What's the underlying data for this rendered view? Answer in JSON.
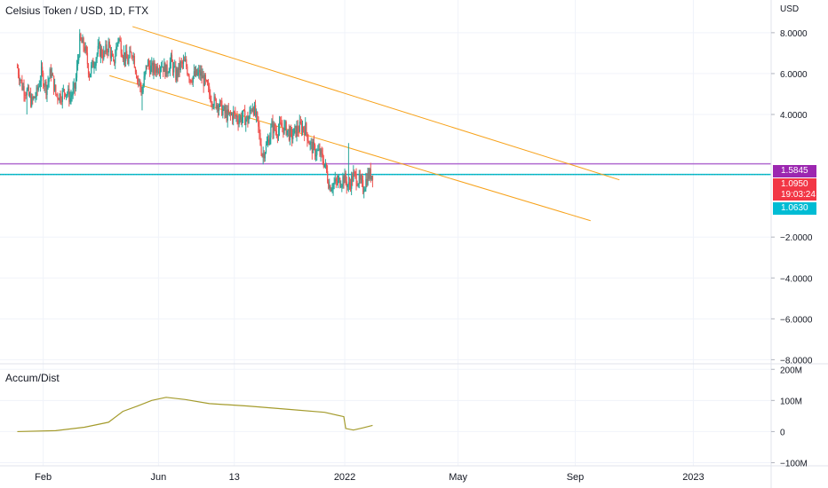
{
  "header": {
    "title": "Celsius Token / USD, 1D, FTX",
    "currency": "USD"
  },
  "indicator": {
    "name": "Accum/Dist"
  },
  "colors": {
    "up": "#26a69a",
    "down": "#ef5350",
    "channel": "#f7a21b",
    "resistance_line": "#b06ad0",
    "current_line": "#00bcd4",
    "ad_line": "#a49b2c",
    "tag_resistance": "#9c27b0",
    "tag_last": "#f23645",
    "tag_low": "#00bcd4"
  },
  "tags": {
    "resistance": "1.5845",
    "last": "1.0950",
    "countdown": "19:03:24",
    "low": "1.0630"
  },
  "chart_data": [
    {
      "type": "candlestick",
      "title": "Celsius Token / USD, 1D, FTX",
      "ylabel": "USD",
      "y_ticks": [
        "8.0000",
        "6.0000",
        "4.0000",
        "−2.0000",
        "−4.0000",
        "−6.0000",
        "−8.0000"
      ],
      "y_tick_values": [
        8,
        6,
        4,
        -2,
        -4,
        -6,
        -8
      ],
      "ylim": [
        -8.2,
        9.6
      ],
      "x_ticks": [
        "Feb",
        "Jun",
        "13",
        "2022",
        "May",
        "Sep",
        "2023"
      ],
      "x_tick_values": [
        27,
        147,
        226,
        341,
        459,
        581,
        704
      ],
      "xlim": [
        -18,
        785
      ],
      "grid": true,
      "horizontal_lines": [
        1.5845,
        1.063
      ],
      "channel_upper": [
        [
          120,
          8.3
        ],
        [
          627,
          0.8
        ]
      ],
      "channel_lower": [
        [
          96,
          5.9
        ],
        [
          597,
          -1.2
        ]
      ],
      "close_path": [
        [
          0,
          6.3
        ],
        [
          5,
          5.4
        ],
        [
          10,
          5.1
        ],
        [
          15,
          4.6
        ],
        [
          20,
          5.0
        ],
        [
          25,
          6.0
        ],
        [
          30,
          5.3
        ],
        [
          35,
          6.1
        ],
        [
          40,
          5.0
        ],
        [
          45,
          4.9
        ],
        [
          50,
          5.2
        ],
        [
          55,
          4.8
        ],
        [
          60,
          5.3
        ],
        [
          65,
          7.6
        ],
        [
          70,
          7.3
        ],
        [
          75,
          6.0
        ],
        [
          80,
          6.6
        ],
        [
          85,
          7.2
        ],
        [
          90,
          6.9
        ],
        [
          95,
          7.4
        ],
        [
          100,
          6.4
        ],
        [
          105,
          7.8
        ],
        [
          110,
          7.0
        ],
        [
          115,
          6.6
        ],
        [
          120,
          7.1
        ],
        [
          125,
          5.8
        ],
        [
          130,
          5.1
        ],
        [
          135,
          6.5
        ],
        [
          140,
          6.2
        ],
        [
          145,
          6.3
        ],
        [
          150,
          6.5
        ],
        [
          155,
          6.1
        ],
        [
          160,
          6.6
        ],
        [
          165,
          5.9
        ],
        [
          170,
          6.4
        ],
        [
          175,
          6.5
        ],
        [
          180,
          5.8
        ],
        [
          185,
          5.9
        ],
        [
          190,
          6.0
        ],
        [
          195,
          5.6
        ],
        [
          200,
          5.0
        ],
        [
          205,
          4.6
        ],
        [
          210,
          4.5
        ],
        [
          215,
          4.1
        ],
        [
          220,
          3.9
        ],
        [
          225,
          4.0
        ],
        [
          230,
          3.8
        ],
        [
          235,
          3.9
        ],
        [
          240,
          3.7
        ],
        [
          245,
          4.5
        ],
        [
          250,
          3.6
        ],
        [
          255,
          2.0
        ],
        [
          260,
          2.5
        ],
        [
          265,
          3.4
        ],
        [
          270,
          3.2
        ],
        [
          275,
          3.4
        ],
        [
          280,
          3.3
        ],
        [
          285,
          2.9
        ],
        [
          290,
          3.2
        ],
        [
          295,
          3.4
        ],
        [
          300,
          3.3
        ],
        [
          305,
          2.5
        ],
        [
          310,
          2.2
        ],
        [
          315,
          2.1
        ],
        [
          320,
          1.6
        ],
        [
          325,
          0.5
        ],
        [
          330,
          0.6
        ],
        [
          335,
          0.7
        ],
        [
          340,
          0.9
        ],
        [
          345,
          0.5
        ],
        [
          350,
          1.0
        ],
        [
          355,
          0.8
        ],
        [
          360,
          0.4
        ],
        [
          365,
          1.0
        ],
        [
          370,
          1.1
        ]
      ],
      "volatility_spike": {
        "x": 345,
        "high": 2.6
      },
      "period_lows": [
        [
          10,
          4.0
        ],
        [
          55,
          4.5
        ],
        [
          130,
          4.2
        ],
        [
          255,
          1.9
        ],
        [
          345,
          0.2
        ]
      ]
    },
    {
      "type": "line",
      "title": "Accum/Dist",
      "y_ticks": [
        "200M",
        "100M",
        "0",
        "−100M"
      ],
      "y_tick_values": [
        200,
        100,
        0,
        -100
      ],
      "ylim": [
        -110,
        215
      ],
      "series": [
        {
          "x": [
            0,
            40,
            70,
            95,
            110,
            125,
            140,
            155,
            175,
            200,
            240,
            280,
            320,
            340,
            342,
            350,
            360,
            370
          ],
          "y": [
            0,
            3,
            14,
            30,
            65,
            82,
            100,
            110,
            103,
            90,
            82,
            72,
            62,
            48,
            10,
            5,
            12,
            20
          ]
        }
      ]
    }
  ]
}
